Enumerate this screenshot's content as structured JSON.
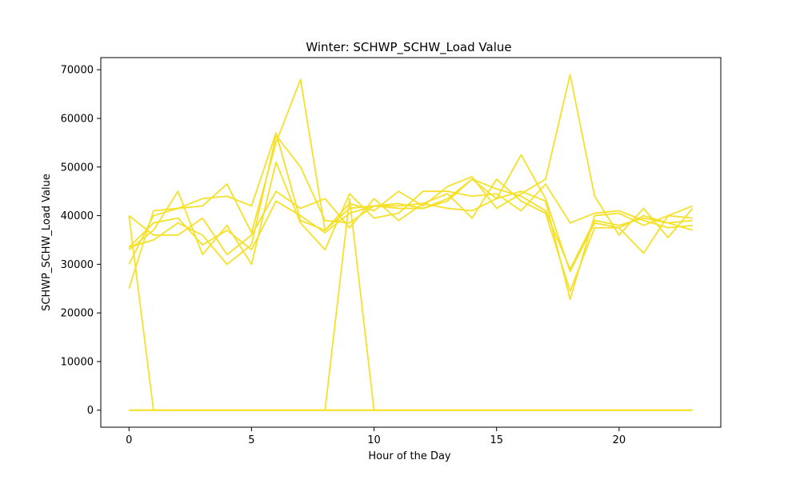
{
  "chart_data": {
    "type": "line",
    "title": "Winter: SCHWP_SCHW_Load Value",
    "xlabel": "Hour of the Day",
    "ylabel": "SCHWP_SCHW_Load Value",
    "xlim": [
      -1.15,
      24.15
    ],
    "ylim": [
      -3500,
      72500
    ],
    "xticks": [
      0,
      5,
      10,
      15,
      20
    ],
    "yticks": [
      0,
      10000,
      20000,
      30000,
      40000,
      50000,
      60000,
      70000
    ],
    "grid": false,
    "line_color": "#f5e12a",
    "x": [
      0,
      1,
      2,
      3,
      4,
      5,
      6,
      7,
      8,
      9,
      10,
      11,
      12,
      13,
      14,
      15,
      16,
      17,
      18,
      19,
      20,
      21,
      22,
      23
    ],
    "series": [
      {
        "values": [
          33500,
          38500,
          39500,
          34000,
          37000,
          33000,
          43000,
          40000,
          36500,
          40500,
          42000,
          42500,
          41500,
          43500,
          47500,
          43500,
          45000,
          43000,
          22800,
          40000,
          40500,
          38000,
          40000,
          39500
        ]
      },
      {
        "values": [
          30000,
          40000,
          41500,
          42000,
          46500,
          36500,
          55000,
          68000,
          37000,
          41500,
          42000,
          42000,
          42500,
          44500,
          39500,
          47500,
          43000,
          40500,
          24500,
          37500,
          37500,
          32300,
          40000,
          42000
        ]
      },
      {
        "values": [
          40000,
          36000,
          36000,
          39500,
          32000,
          36000,
          45000,
          41500,
          43500,
          37500,
          43500,
          39000,
          42500,
          41500,
          41000,
          43500,
          52500,
          43500,
          28500,
          38500,
          37500,
          40000,
          38500,
          37000
        ]
      },
      {
        "values": [
          25000,
          41000,
          41500,
          43500,
          44000,
          42000,
          57000,
          39000,
          37000,
          42500,
          41000,
          45000,
          42000,
          46000,
          48000,
          41500,
          44500,
          47500,
          69000,
          44000,
          36000,
          41500,
          35500,
          41500
        ]
      },
      {
        "values": [
          33000,
          37000,
          45000,
          32000,
          38000,
          30000,
          51000,
          38500,
          33000,
          44500,
          39500,
          40500,
          45000,
          45000,
          44000,
          44500,
          41000,
          46500,
          38500,
          40500,
          41000,
          39000,
          37500,
          38000
        ]
      },
      {
        "values": [
          33500,
          35000,
          38500,
          36000,
          30000,
          34000,
          56500,
          50000,
          39000,
          38500,
          42000,
          41500,
          41500,
          43000,
          47500,
          45500,
          44000,
          41000,
          29000,
          39000,
          38000,
          39500,
          38500,
          39000
        ]
      },
      {
        "values": [
          0,
          0,
          0,
          0,
          0,
          0,
          0,
          0,
          0,
          43500,
          0,
          0,
          0,
          0,
          0,
          0,
          0,
          0,
          0,
          0,
          0,
          0,
          0,
          0
        ]
      },
      {
        "values": [
          40000,
          0,
          0,
          0,
          0,
          0,
          0,
          0,
          0,
          0,
          0,
          0,
          0,
          0,
          0,
          0,
          0,
          0,
          0,
          0,
          0,
          0,
          0,
          0
        ]
      },
      {
        "values": [
          0,
          0,
          0,
          0,
          0,
          0,
          0,
          0,
          0,
          0,
          0,
          0,
          0,
          0,
          0,
          0,
          0,
          0,
          0,
          0,
          0,
          0,
          0,
          0
        ]
      },
      {
        "values": [
          0,
          0,
          0,
          0,
          0,
          0,
          0,
          0,
          0,
          0,
          0,
          0,
          0,
          0,
          0,
          0,
          0,
          0,
          0,
          0,
          0,
          0,
          0,
          0
        ]
      },
      {
        "values": [
          0,
          0,
          0,
          0,
          0,
          0,
          0,
          0,
          0,
          0,
          0,
          0,
          0,
          0,
          0,
          0,
          0,
          0,
          0,
          0,
          0,
          0,
          0,
          0
        ]
      }
    ]
  }
}
